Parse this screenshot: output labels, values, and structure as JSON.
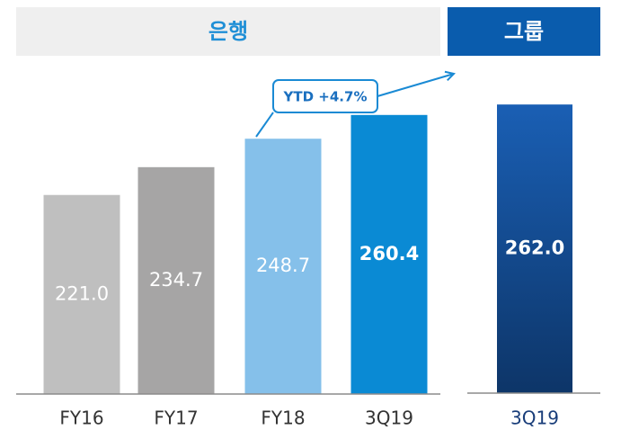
{
  "chart_data": [
    {
      "type": "bar",
      "title": "은행",
      "categories": [
        "FY16",
        "FY17",
        "FY18",
        "3Q19"
      ],
      "values": [
        221.0,
        234.7,
        248.7,
        260.4
      ],
      "value_labels": [
        "221.0",
        "234.7",
        "248.7",
        "260.4"
      ],
      "colors": [
        "#bfbfbf",
        "#a6a5a5",
        "#85c0ea",
        "#0a8ad4"
      ],
      "ylim": [
        123,
        286
      ],
      "annotation": "YTD +4.7%"
    },
    {
      "type": "bar",
      "title": "그룹",
      "categories": [
        "3Q19"
      ],
      "values": [
        262.0
      ],
      "value_labels": [
        "262.0"
      ],
      "colors": [
        "#1a5fb4"
      ],
      "ylim": [
        123,
        282
      ]
    }
  ]
}
